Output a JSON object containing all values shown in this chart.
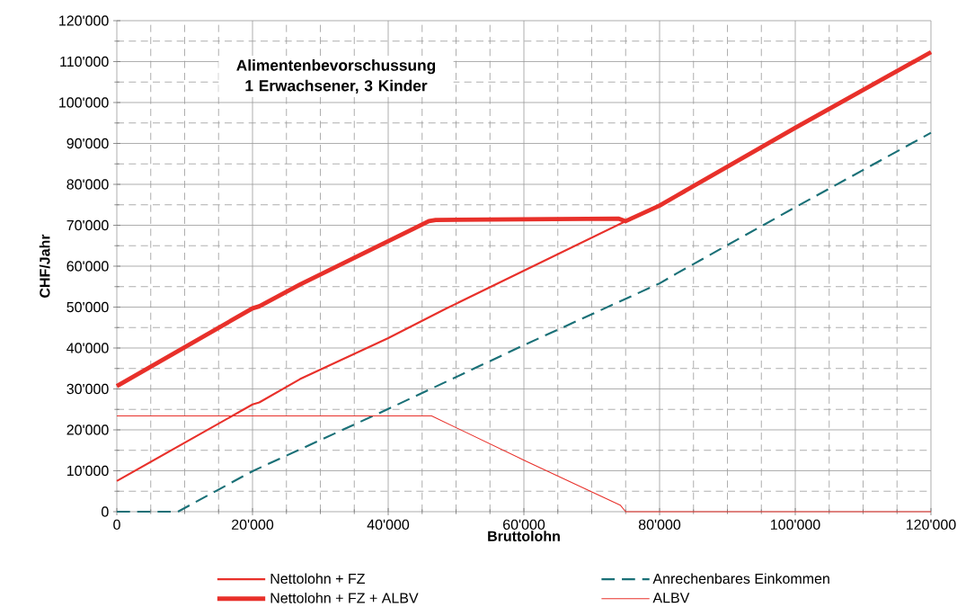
{
  "chart_data": {
    "type": "line",
    "title": "Alimentenbevorschussung 1 Erwachsener, 3 Kinder",
    "xlabel": "Bruttolohn",
    "ylabel": "CHF/Jahr",
    "xlim": [
      0,
      120000
    ],
    "ylim": [
      0,
      120000
    ],
    "xticks": [
      0,
      {
        "value": 20000,
        "label": "20'000"
      },
      {
        "value": 40000,
        "label": "40'000"
      },
      {
        "value": 60000,
        "label": "60'000"
      },
      {
        "value": 80000,
        "label": "80'000"
      },
      {
        "value": 100000,
        "label": "100'000"
      },
      {
        "value": 120000,
        "label": "120'000"
      }
    ],
    "yticks": [
      0,
      {
        "value": 10000,
        "label": "10'000"
      },
      {
        "value": 20000,
        "label": "20'000"
      },
      {
        "value": 30000,
        "label": "30'000"
      },
      {
        "value": 40000,
        "label": "40'000"
      },
      {
        "value": 50000,
        "label": "50'000"
      },
      {
        "value": 60000,
        "label": "60'000"
      },
      {
        "value": 70000,
        "label": "70'000"
      },
      {
        "value": 80000,
        "label": "80'000"
      },
      {
        "value": 90000,
        "label": "90'000"
      },
      {
        "value": 100000,
        "label": "100'000"
      },
      {
        "value": 110000,
        "label": "110'000"
      },
      {
        "value": 120000,
        "label": "120'000"
      }
    ],
    "grid": true,
    "legend": "bottom",
    "marker": "none",
    "series": [
      {
        "name": "Nettolohn + FZ",
        "color": "#e8302a",
        "line_style": "solid",
        "x": [
          0,
          20000,
          21000,
          27000,
          40000,
          48500,
          60000,
          75000,
          80000,
          82500,
          100000,
          120000
        ],
        "values": [
          7500,
          26200,
          26700,
          32400,
          42400,
          49600,
          58900,
          71000,
          74800,
          77200,
          93800,
          112300
        ]
      },
      {
        "name": "Anrechenbares Einkommen",
        "color": "#1a7077",
        "line_style": "dashed",
        "x": [
          0,
          9000,
          20000,
          40000,
          60000,
          80000,
          82500,
          100000,
          120000
        ],
        "values": [
          0,
          0,
          9900,
          25100,
          40700,
          55800,
          58200,
          74400,
          92600
        ]
      },
      {
        "name": "Nettolohn + FZ + ALBV",
        "color": "#e8302a",
        "line_style": "solid",
        "x": [
          0,
          20000,
          21000,
          27000,
          46000,
          47000,
          74000,
          75000,
          80000,
          82500,
          100000,
          120000
        ],
        "values": [
          30700,
          49700,
          50200,
          55500,
          71000,
          71300,
          71600,
          71000,
          74800,
          77200,
          93800,
          112300
        ]
      },
      {
        "name": "ALBV",
        "color": "#e8302a",
        "line_style": "solid",
        "x": [
          0,
          46400,
          60000,
          74200,
          75000,
          120000
        ],
        "values": [
          23400,
          23400,
          12600,
          1600,
          0,
          0
        ]
      }
    ]
  }
}
